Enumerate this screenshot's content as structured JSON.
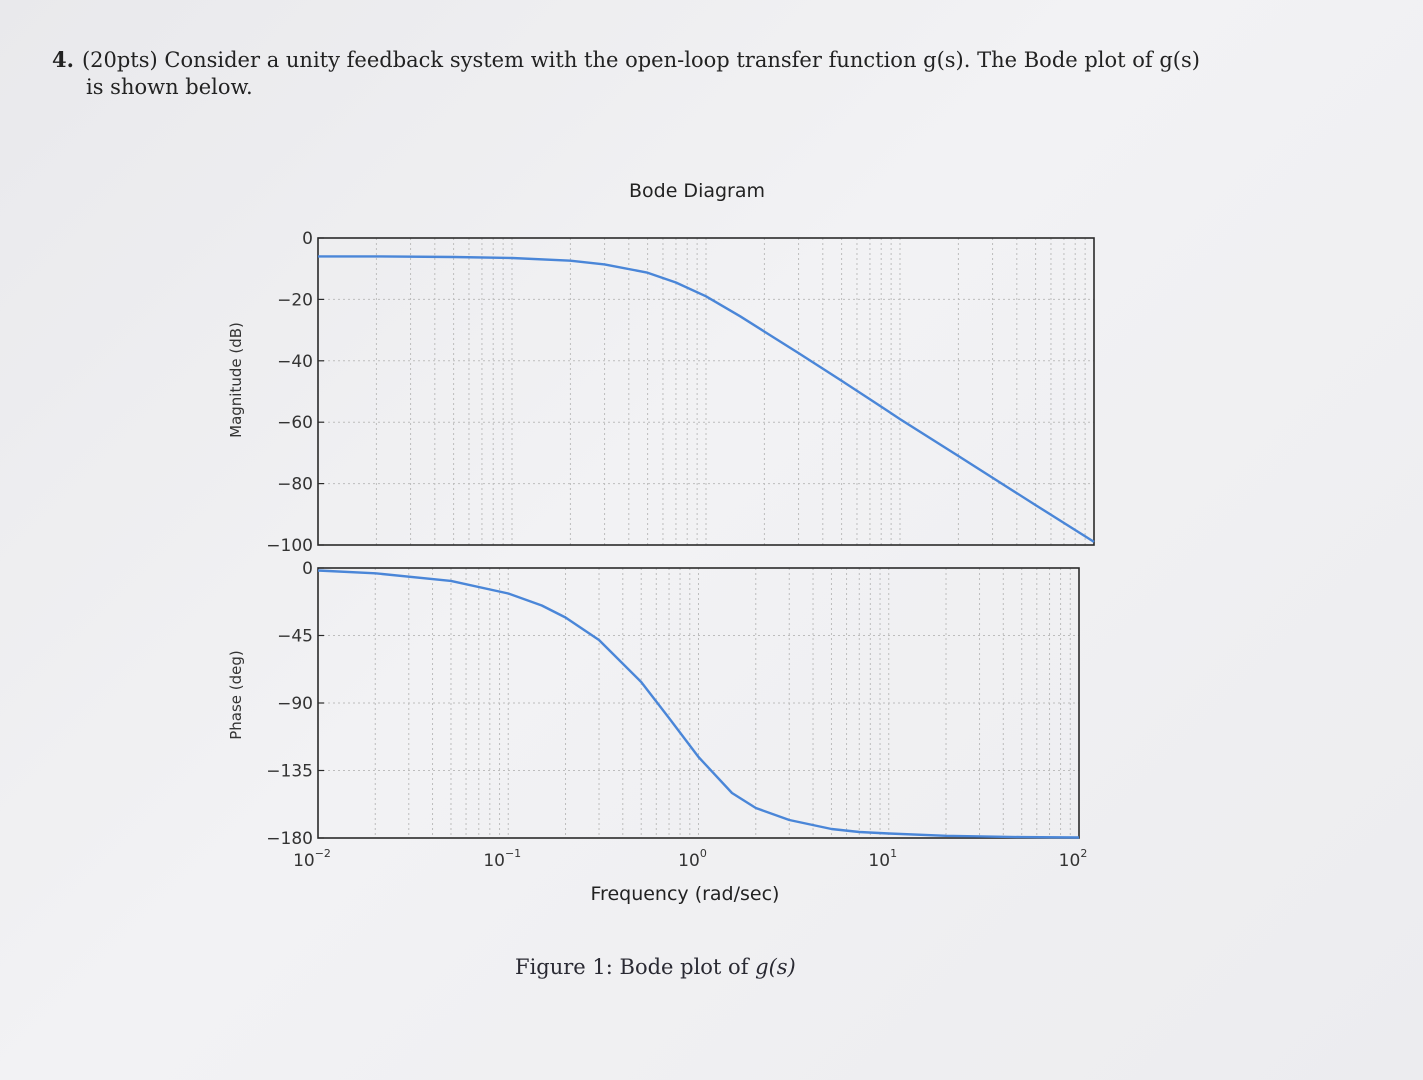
{
  "problem": {
    "number": "4.",
    "line1": "(20pts) Consider a unity feedback system with the open-loop transfer function g(s). The Bode plot of g(s)",
    "line2": "is shown below."
  },
  "caption": {
    "prefix": "Figure 1: Bode plot of ",
    "func": "g(s)"
  },
  "colors": {
    "curve": "#4a86d8",
    "frame": "#2a2a2a",
    "grid": "#bdbdbd"
  },
  "chart_data": [
    {
      "type": "line",
      "title": "Bode Diagram",
      "xlabel": "",
      "ylabel": "Magnitude (dB)",
      "xscale": "log",
      "xlim": [
        0.01,
        100
      ],
      "ylim": [
        -100,
        0
      ],
      "yticks": [
        0,
        -20,
        -40,
        -60,
        -80,
        -100
      ],
      "grid": true,
      "series": [
        {
          "x": [
            0.01,
            0.02,
            0.05,
            0.1,
            0.2,
            0.3,
            0.5,
            0.7,
            1,
            1.5,
            2,
            3,
            5,
            7,
            10,
            20,
            50,
            100
          ],
          "y": [
            -6,
            -6,
            -6.2,
            -6.5,
            -7.4,
            -8.6,
            -11.3,
            -14.5,
            -19,
            -25.5,
            -30.5,
            -37.5,
            -46.5,
            -52.5,
            -59,
            -71,
            -87,
            -99
          ]
        }
      ]
    },
    {
      "type": "line",
      "xlabel": "Frequency (rad/sec)",
      "ylabel": "Phase (deg)",
      "xscale": "log",
      "xlim": [
        0.01,
        100
      ],
      "ylim": [
        -180,
        0
      ],
      "yticks": [
        0,
        -45,
        -90,
        -135,
        -180
      ],
      "xticks": [
        {
          "base": "10",
          "exp": "-2"
        },
        {
          "base": "10",
          "exp": "-1"
        },
        {
          "base": "10",
          "exp": "0"
        },
        {
          "base": "10",
          "exp": "1"
        },
        {
          "base": "10",
          "exp": "2"
        }
      ],
      "grid": true,
      "series": [
        {
          "x": [
            0.01,
            0.02,
            0.05,
            0.1,
            0.15,
            0.2,
            0.3,
            0.5,
            0.7,
            1,
            1.5,
            2,
            3,
            5,
            7,
            10,
            20,
            50,
            100
          ],
          "y": [
            -1.7,
            -3.5,
            -8.6,
            -17,
            -25,
            -33,
            -48,
            -76,
            -100,
            -126,
            -150,
            -160,
            -168,
            -174,
            -176,
            -177,
            -178.5,
            -179.4,
            -179.7
          ]
        }
      ]
    }
  ]
}
